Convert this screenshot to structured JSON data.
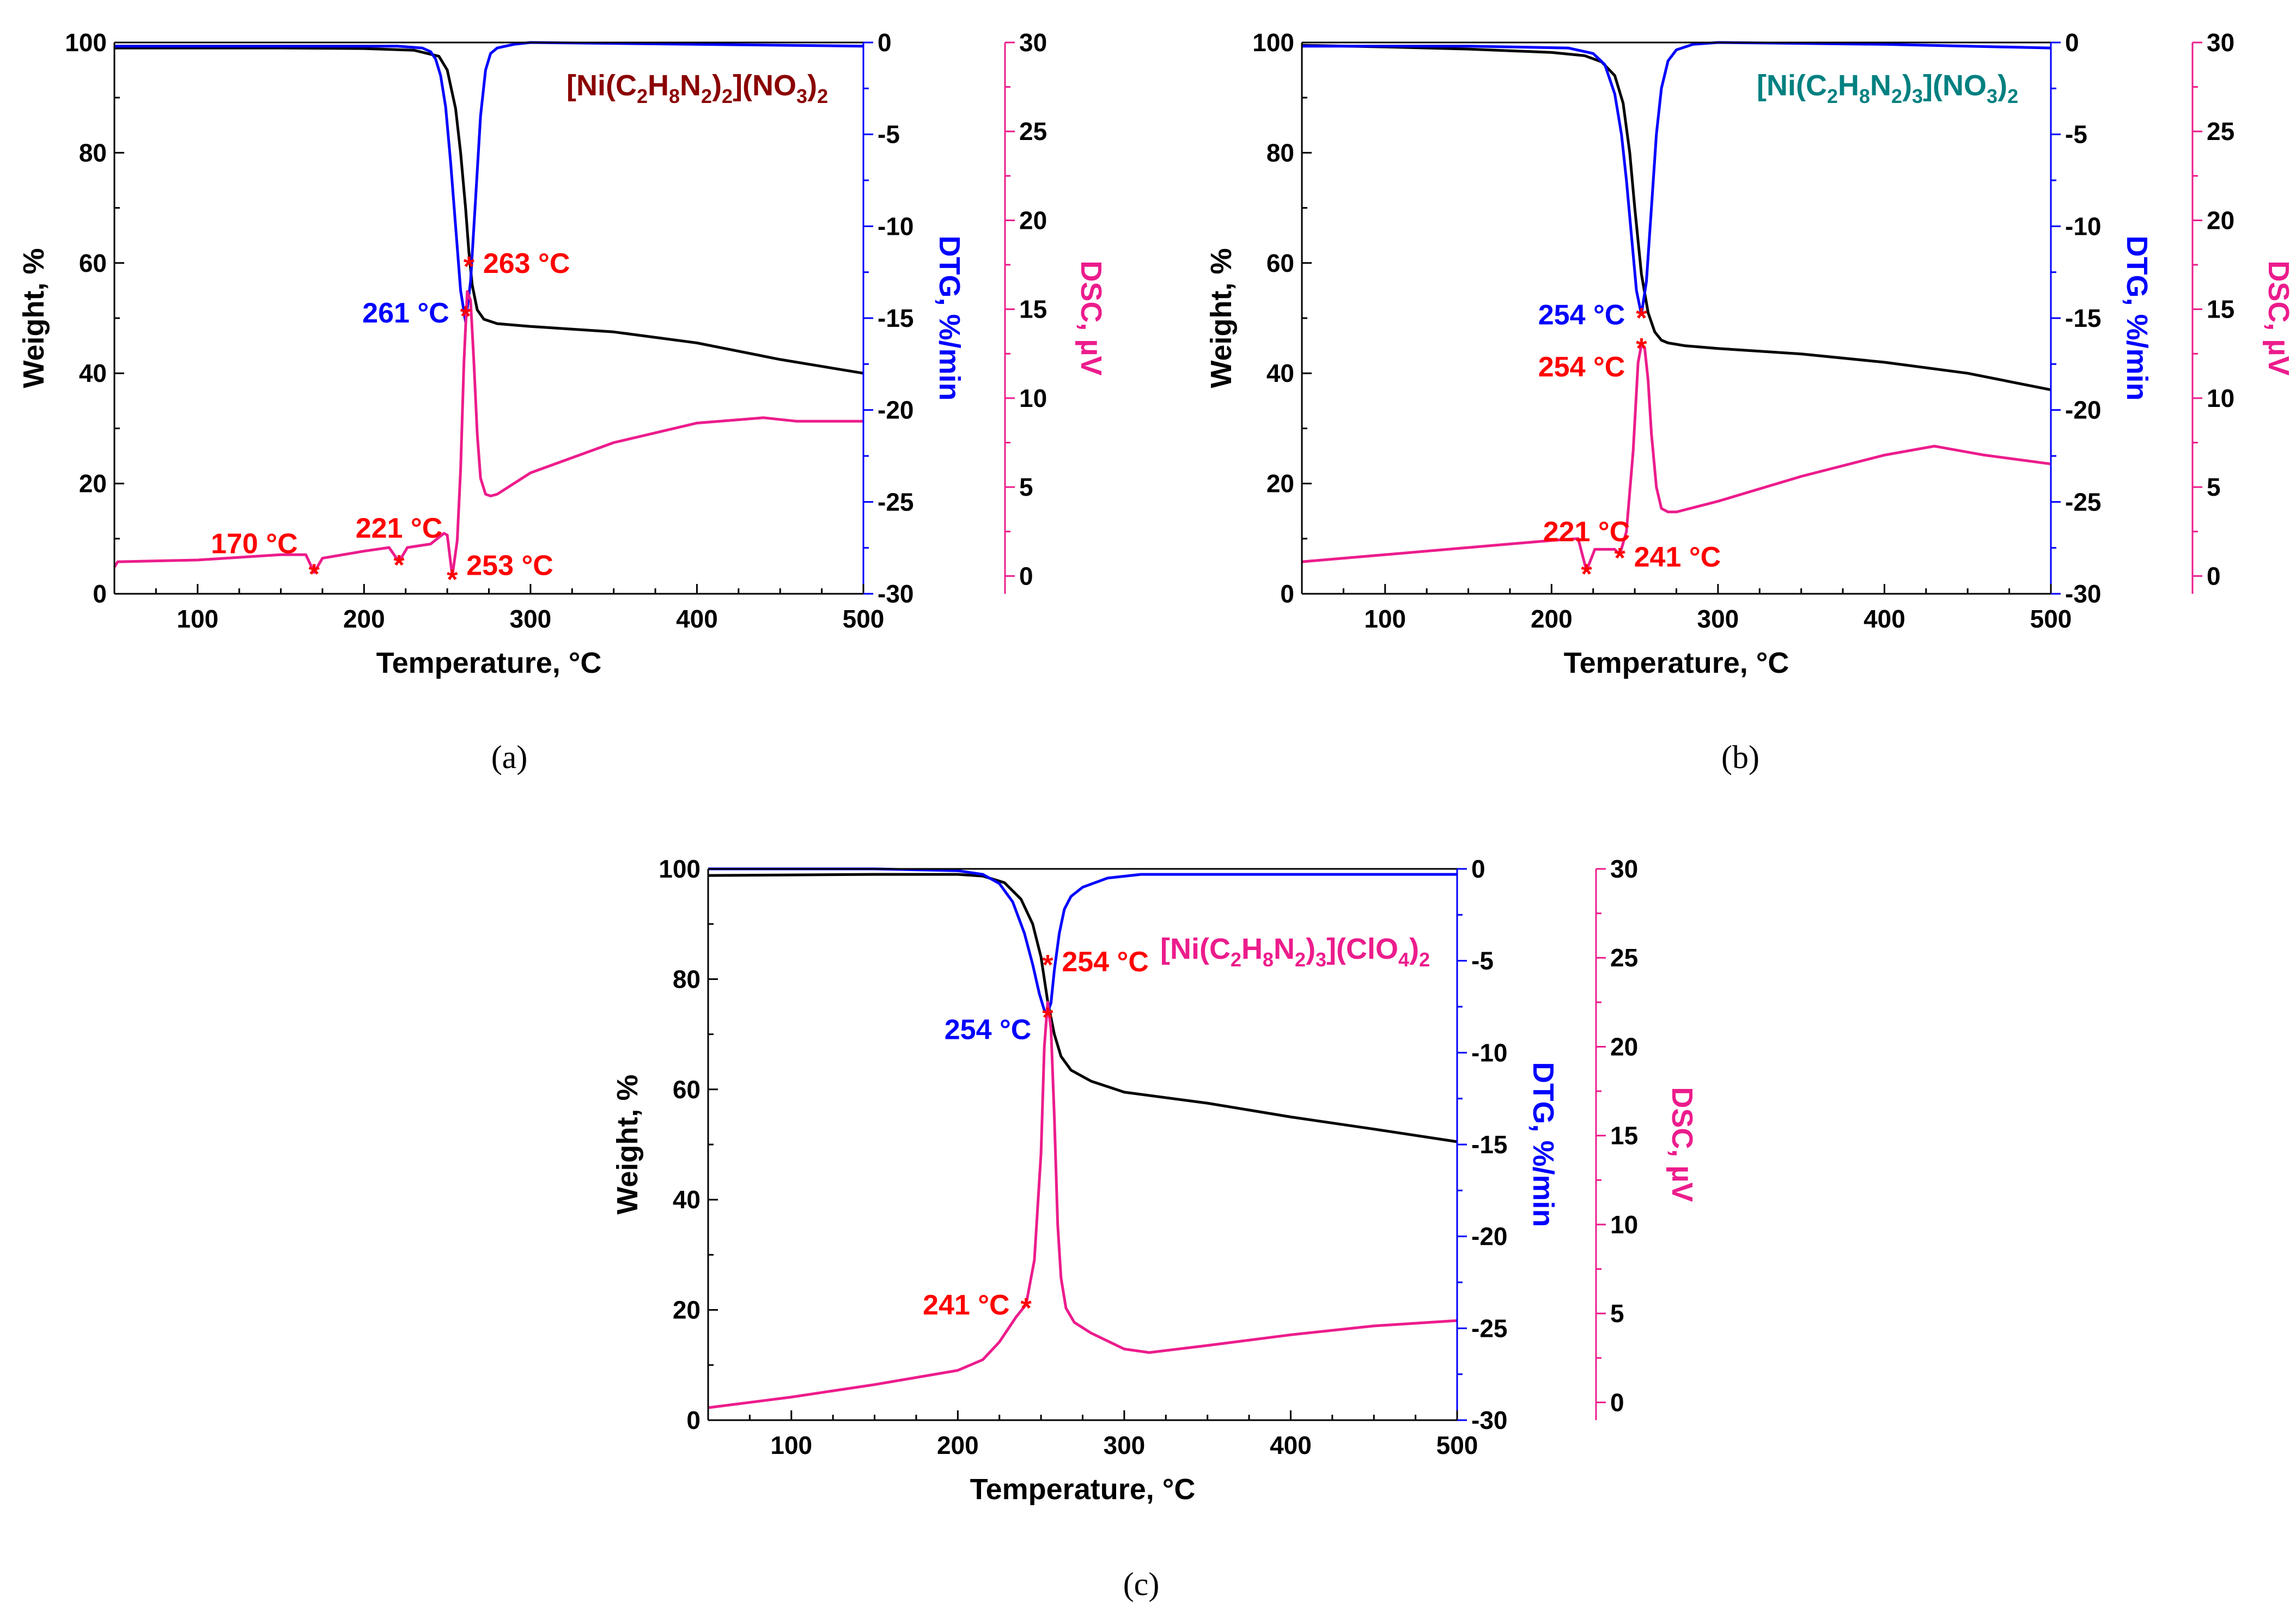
{
  "colors": {
    "weight": "#000000",
    "dtg": "#0000ff",
    "dsc": "#ec1c8c",
    "marker": "#ff0000",
    "title_a": "#8b0000",
    "title_b": "#008080",
    "title_c": "#ec1c8c"
  },
  "chart_data": [
    {
      "id": "a",
      "type": "line",
      "caption": "(a)",
      "title": {
        "parts": [
          {
            "t": "[Ni(C"
          },
          {
            "t": "2",
            "sub": true
          },
          {
            "t": "H"
          },
          {
            "t": "8",
            "sub": true
          },
          {
            "t": "N"
          },
          {
            "t": "2",
            "sub": true
          },
          {
            "t": ")"
          },
          {
            "t": "2",
            "sub": true
          },
          {
            "t": "](NO"
          },
          {
            "t": "3",
            "sub": true
          },
          {
            "t": ")"
          },
          {
            "t": "2",
            "sub": true
          }
        ],
        "color_key": "title_a"
      },
      "xlabel": "Temperature, °C",
      "ylabel_weight": "Weight, %",
      "ylabel_dtg": "DTG, %/min",
      "ylabel_dsc": "DSC, µV",
      "xlim": [
        50,
        500
      ],
      "xticks": [
        100,
        200,
        300,
        400,
        500
      ],
      "weight_lim": [
        0,
        100
      ],
      "weight_ticks": [
        0,
        20,
        40,
        60,
        80,
        100
      ],
      "dtg_lim": [
        -30,
        0
      ],
      "dtg_ticks": [
        0,
        -5,
        -10,
        -15,
        -20,
        -25,
        -30
      ],
      "dsc_lim": [
        -1,
        30
      ],
      "dsc_ticks": [
        0,
        5,
        10,
        15,
        20,
        25,
        30
      ],
      "series": [
        {
          "name": "Weight",
          "axis": "weight",
          "color_key": "weight",
          "x": [
            50,
            100,
            150,
            200,
            230,
            245,
            250,
            255,
            258,
            261,
            263,
            265,
            268,
            272,
            280,
            300,
            350,
            400,
            450,
            500
          ],
          "y": [
            99.0,
            99.0,
            99.0,
            98.9,
            98.6,
            97.5,
            95.0,
            88.0,
            80.0,
            70.0,
            62.0,
            56.0,
            51.5,
            49.8,
            49.0,
            48.5,
            47.5,
            45.5,
            42.5,
            40.0
          ]
        },
        {
          "name": "DTG",
          "axis": "dtg",
          "color_key": "dtg",
          "x": [
            50,
            150,
            220,
            235,
            240,
            243,
            246,
            249,
            252,
            255,
            258,
            261,
            264,
            267,
            270,
            273,
            276,
            280,
            290,
            300,
            400,
            500
          ],
          "y": [
            -0.2,
            -0.2,
            -0.2,
            -0.3,
            -0.5,
            -0.9,
            -1.8,
            -3.5,
            -6.5,
            -10.0,
            -13.5,
            -15.2,
            -13.0,
            -8.5,
            -4.0,
            -1.5,
            -0.6,
            -0.3,
            -0.1,
            0.0,
            -0.1,
            -0.2
          ]
        },
        {
          "name": "DSC",
          "axis": "dsc",
          "color_key": "dsc",
          "x": [
            50,
            52,
            100,
            150,
            165,
            170,
            175,
            200,
            215,
            221,
            226,
            240,
            248,
            250,
            253,
            256,
            258,
            260,
            262,
            264,
            266,
            268,
            270,
            273,
            276,
            280,
            300,
            350,
            400,
            440,
            460,
            500
          ],
          "y": [
            0.5,
            0.8,
            0.9,
            1.2,
            1.2,
            0.2,
            1.0,
            1.4,
            1.6,
            0.8,
            1.6,
            1.8,
            2.4,
            2.3,
            0.0,
            2.0,
            6.0,
            12.0,
            16.0,
            15.5,
            12.0,
            8.0,
            5.5,
            4.6,
            4.5,
            4.6,
            5.8,
            7.5,
            8.6,
            8.9,
            8.7,
            8.7
          ]
        }
      ],
      "annotations": [
        {
          "label": "263 °C",
          "x": 263,
          "axis": "dsc",
          "y": 17.6,
          "color_key": "marker",
          "side": "right",
          "dy": 0
        },
        {
          "label": "261 °C",
          "x": 261,
          "axis": "dtg",
          "y": -14.7,
          "color_key": "dtg",
          "side": "left",
          "dy": 0
        },
        {
          "label": "170 °C",
          "x": 170,
          "axis": "dsc",
          "y": 0.3,
          "color_key": "marker",
          "side": "left",
          "dy": -50
        },
        {
          "label": "221 °C",
          "x": 221,
          "axis": "dsc",
          "y": 0.8,
          "color_key": "marker",
          "side": "center",
          "dy": -62
        },
        {
          "label": "253 °C",
          "x": 253,
          "axis": "dsc",
          "y": 0.0,
          "color_key": "marker",
          "side": "right",
          "dy": -20
        }
      ]
    },
    {
      "id": "b",
      "type": "line",
      "caption": "(b)",
      "title": {
        "parts": [
          {
            "t": "[Ni(C"
          },
          {
            "t": "2",
            "sub": true
          },
          {
            "t": "H"
          },
          {
            "t": "8",
            "sub": true
          },
          {
            "t": "N"
          },
          {
            "t": "2",
            "sub": true
          },
          {
            "t": ")"
          },
          {
            "t": "3",
            "sub": true
          },
          {
            "t": "](NO"
          },
          {
            "t": "3",
            "sub": true
          },
          {
            "t": ")"
          },
          {
            "t": "2",
            "sub": true
          }
        ],
        "color_key": "title_b"
      },
      "xlabel": "Temperature, °C",
      "ylabel_weight": "Weight, %",
      "ylabel_dtg": "DTG, %/min",
      "ylabel_dsc": "DSC, µV",
      "xlim": [
        50,
        500
      ],
      "xticks": [
        100,
        200,
        300,
        400,
        500
      ],
      "weight_lim": [
        0,
        100
      ],
      "weight_ticks": [
        0,
        20,
        40,
        60,
        80,
        100
      ],
      "dtg_lim": [
        -30,
        0
      ],
      "dtg_ticks": [
        0,
        -5,
        -10,
        -15,
        -20,
        -25,
        -30
      ],
      "dsc_lim": [
        -1,
        30
      ],
      "dsc_ticks": [
        0,
        5,
        10,
        15,
        20,
        25,
        30
      ],
      "series": [
        {
          "name": "Weight",
          "axis": "weight",
          "color_key": "weight",
          "x": [
            50,
            100,
            150,
            200,
            220,
            230,
            238,
            243,
            247,
            250,
            254,
            258,
            262,
            266,
            270,
            280,
            300,
            350,
            400,
            450,
            500
          ],
          "y": [
            99.5,
            99.2,
            98.8,
            98.2,
            97.6,
            96.5,
            94.0,
            89.0,
            80.0,
            70.0,
            58.0,
            51.0,
            47.5,
            46.0,
            45.5,
            45.0,
            44.5,
            43.5,
            42.0,
            40.0,
            37.0
          ]
        },
        {
          "name": "DTG",
          "axis": "dtg",
          "color_key": "dtg",
          "x": [
            50,
            150,
            210,
            225,
            232,
            238,
            242,
            245,
            248,
            251,
            254,
            257,
            260,
            263,
            266,
            270,
            275,
            285,
            300,
            400,
            500
          ],
          "y": [
            -0.2,
            -0.2,
            -0.3,
            -0.6,
            -1.2,
            -2.8,
            -5.0,
            -7.5,
            -10.5,
            -13.5,
            -14.8,
            -13.0,
            -9.0,
            -5.0,
            -2.5,
            -1.0,
            -0.4,
            -0.1,
            0.0,
            -0.1,
            -0.3
          ]
        },
        {
          "name": "DSC",
          "axis": "dsc",
          "color_key": "dsc",
          "x": [
            50,
            100,
            150,
            200,
            216,
            221,
            226,
            238,
            241,
            245,
            249,
            252,
            254,
            256,
            258,
            260,
            263,
            266,
            270,
            275,
            300,
            350,
            400,
            430,
            460,
            500
          ],
          "y": [
            0.8,
            1.2,
            1.6,
            2.0,
            2.1,
            0.3,
            1.5,
            1.5,
            1.2,
            2.5,
            7.0,
            12.0,
            13.0,
            12.8,
            11.0,
            8.0,
            5.0,
            3.8,
            3.6,
            3.6,
            4.2,
            5.6,
            6.8,
            7.3,
            6.8,
            6.3
          ]
        }
      ],
      "annotations": [
        {
          "label": "254 °C",
          "x": 254,
          "axis": "dtg",
          "y": -14.8,
          "color_key": "dtg",
          "side": "left",
          "dy": 0
        },
        {
          "label": "254 °C",
          "x": 254,
          "axis": "dsc",
          "y": 13.0,
          "color_key": "marker",
          "side": "left",
          "dy": 40
        },
        {
          "label": "221 °C",
          "x": 221,
          "axis": "dsc",
          "y": 0.3,
          "color_key": "marker",
          "side": "center",
          "dy": -72
        },
        {
          "label": "241 °C",
          "x": 241,
          "axis": "dsc",
          "y": 1.2,
          "color_key": "marker",
          "side": "right",
          "dy": 4
        }
      ]
    },
    {
      "id": "c",
      "type": "line",
      "caption": "(c)",
      "title": {
        "parts": [
          {
            "t": "[Ni(C"
          },
          {
            "t": "2",
            "sub": true
          },
          {
            "t": "H"
          },
          {
            "t": "8",
            "sub": true
          },
          {
            "t": "N"
          },
          {
            "t": "2",
            "sub": true
          },
          {
            "t": ")"
          },
          {
            "t": "3",
            "sub": true
          },
          {
            "t": "](ClO"
          },
          {
            "t": "4",
            "sub": true
          },
          {
            "t": ")"
          },
          {
            "t": "2",
            "sub": true
          }
        ],
        "color_key": "title_c"
      },
      "xlabel": "Temperature, °C",
      "ylabel_weight": "Weight, %",
      "ylabel_dtg": "DTG, %/min",
      "ylabel_dsc": "DSC, µV",
      "xlim": [
        50,
        500
      ],
      "xticks": [
        100,
        200,
        300,
        400,
        500
      ],
      "weight_lim": [
        0,
        100
      ],
      "weight_ticks": [
        0,
        20,
        40,
        60,
        80,
        100
      ],
      "dtg_lim": [
        -30,
        0
      ],
      "dtg_ticks": [
        0,
        -5,
        -10,
        -15,
        -20,
        -25,
        -30
      ],
      "dsc_lim": [
        -1,
        30
      ],
      "dsc_ticks": [
        0,
        5,
        10,
        15,
        20,
        25,
        30
      ],
      "series": [
        {
          "name": "Weight",
          "axis": "weight",
          "color_key": "weight",
          "x": [
            50,
            100,
            150,
            200,
            215,
            228,
            238,
            245,
            250,
            254,
            258,
            262,
            268,
            280,
            300,
            350,
            400,
            450,
            500
          ],
          "y": [
            98.8,
            98.9,
            99.0,
            99.0,
            98.7,
            97.5,
            94.5,
            90.0,
            84.0,
            76.0,
            70.0,
            66.0,
            63.5,
            61.5,
            59.5,
            57.5,
            55.0,
            52.8,
            50.5
          ]
        },
        {
          "name": "DTG",
          "axis": "dtg",
          "color_key": "dtg",
          "x": [
            50,
            150,
            200,
            215,
            225,
            233,
            240,
            245,
            249,
            252,
            254,
            256,
            258,
            261,
            264,
            268,
            275,
            290,
            310,
            400,
            500
          ],
          "y": [
            0.0,
            0.0,
            -0.1,
            -0.3,
            -0.8,
            -1.8,
            -3.5,
            -5.2,
            -6.8,
            -7.7,
            -7.8,
            -7.3,
            -5.5,
            -3.5,
            -2.2,
            -1.5,
            -1.0,
            -0.5,
            -0.3,
            -0.3,
            -0.3
          ]
        },
        {
          "name": "DSC",
          "axis": "dsc",
          "color_key": "dsc",
          "x": [
            50,
            100,
            150,
            200,
            215,
            225,
            235,
            241,
            246,
            250,
            252,
            254,
            256,
            258,
            260,
            262,
            265,
            270,
            280,
            300,
            315,
            350,
            400,
            450,
            500
          ],
          "y": [
            -0.3,
            0.3,
            1.0,
            1.8,
            2.4,
            3.4,
            4.8,
            5.5,
            8.0,
            14.0,
            20.0,
            22.5,
            21.0,
            16.0,
            10.0,
            7.0,
            5.3,
            4.5,
            3.9,
            3.0,
            2.8,
            3.2,
            3.8,
            4.3,
            4.6
          ]
        }
      ],
      "annotations": [
        {
          "label": "254 °C",
          "x": 254,
          "axis": "dsc",
          "y": 24.8,
          "color_key": "marker",
          "side": "right",
          "dy": 0
        },
        {
          "label": "254 °C",
          "x": 254,
          "axis": "dtg",
          "y": -7.9,
          "color_key": "dtg",
          "side": "left",
          "dy": 28
        },
        {
          "label": "241 °C",
          "x": 241,
          "axis": "dsc",
          "y": 5.5,
          "color_key": "marker",
          "side": "left",
          "dy": 0
        }
      ]
    }
  ]
}
